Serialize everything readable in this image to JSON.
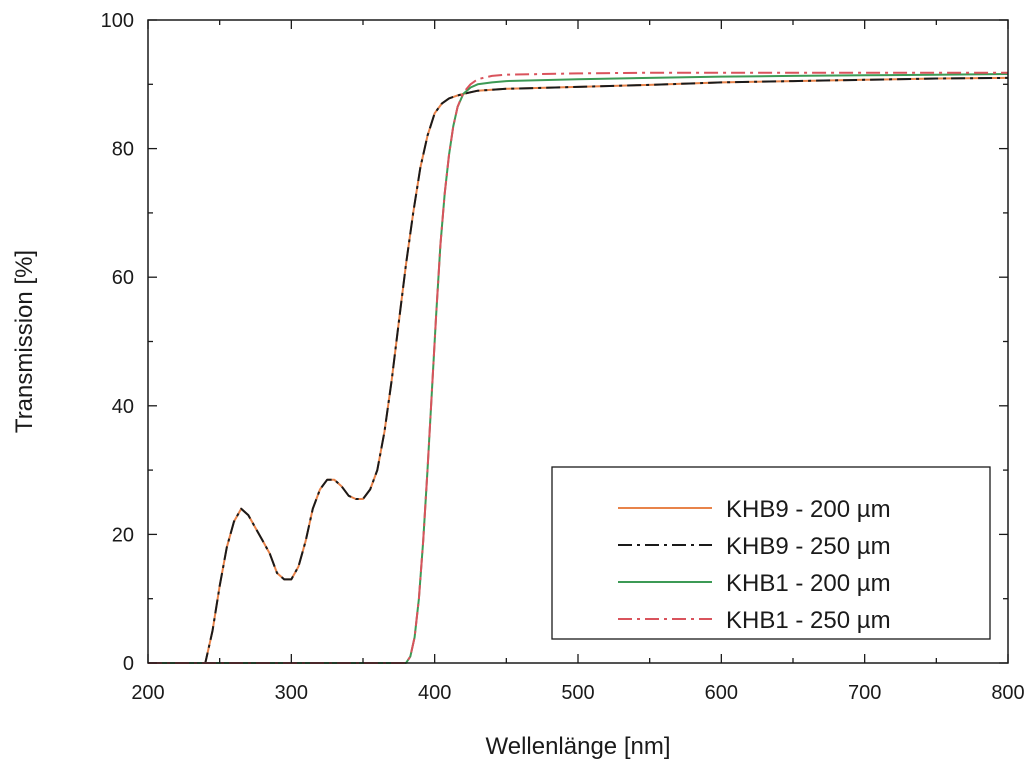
{
  "chart_data": {
    "type": "line",
    "xlabel": "Wellenlänge [nm]",
    "ylabel": "Transmission [%]",
    "xlim": [
      200,
      800
    ],
    "ylim": [
      0,
      100
    ],
    "xticks": [
      200,
      300,
      400,
      500,
      600,
      700,
      800
    ],
    "yticks": [
      0,
      20,
      40,
      60,
      80,
      100
    ],
    "grid": false,
    "legend_position": "bottom-right",
    "series": [
      {
        "name": "KHB9 - 200 µm",
        "color": "#e8834a",
        "style": "solid",
        "x": [
          200,
          240,
          245,
          250,
          255,
          260,
          265,
          270,
          275,
          280,
          285,
          290,
          295,
          300,
          305,
          310,
          315,
          320,
          325,
          330,
          335,
          340,
          345,
          350,
          355,
          360,
          365,
          370,
          375,
          380,
          385,
          390,
          395,
          400,
          405,
          410,
          415,
          420,
          430,
          450,
          500,
          550,
          600,
          650,
          700,
          750,
          800
        ],
        "y": [
          0,
          0,
          5,
          12,
          18,
          22,
          24,
          23,
          21,
          19,
          17,
          14,
          13,
          13,
          15,
          19,
          24,
          27,
          28.5,
          28.5,
          27.5,
          26,
          25.5,
          25.5,
          27,
          30,
          36,
          44,
          53,
          62,
          70,
          77,
          82,
          85.5,
          87,
          87.8,
          88.2,
          88.5,
          89,
          89.3,
          89.6,
          89.9,
          90.3,
          90.5,
          90.7,
          90.9,
          91
        ]
      },
      {
        "name": "KHB9 - 250 µm",
        "color": "#1a1a1a",
        "style": "dashdot",
        "x": [
          200,
          240,
          245,
          250,
          255,
          260,
          265,
          270,
          275,
          280,
          285,
          290,
          295,
          300,
          305,
          310,
          315,
          320,
          325,
          330,
          335,
          340,
          345,
          350,
          355,
          360,
          365,
          370,
          375,
          380,
          385,
          390,
          395,
          400,
          405,
          410,
          415,
          420,
          430,
          450,
          500,
          550,
          600,
          650,
          700,
          750,
          800
        ],
        "y": [
          0,
          0,
          5,
          12,
          18,
          22,
          24,
          23,
          21,
          19,
          17,
          14,
          13,
          13,
          15,
          19,
          24,
          27,
          28.5,
          28.5,
          27.5,
          26,
          25.5,
          25.5,
          27,
          30,
          36,
          44,
          53,
          62,
          70,
          77,
          82,
          85.5,
          87,
          87.8,
          88.2,
          88.5,
          89,
          89.3,
          89.6,
          89.9,
          90.3,
          90.5,
          90.7,
          90.9,
          91
        ]
      },
      {
        "name": "KHB1 - 200 µm",
        "color": "#3c9a55",
        "style": "solid",
        "x": [
          200,
          380,
          383,
          386,
          389,
          392,
          395,
          398,
          401,
          404,
          407,
          410,
          413,
          416,
          420,
          425,
          430,
          440,
          450,
          500,
          550,
          600,
          650,
          700,
          750,
          800
        ],
        "y": [
          0,
          0,
          1,
          4,
          10,
          19,
          30,
          42,
          54,
          65,
          73,
          79,
          83.5,
          86.5,
          88.5,
          89.5,
          90,
          90.3,
          90.5,
          90.8,
          91,
          91.2,
          91.3,
          91.4,
          91.5,
          91.6
        ]
      },
      {
        "name": "KHB1 - 250 µm",
        "color": "#d9535c",
        "style": "dashdot",
        "x": [
          200,
          380,
          383,
          386,
          389,
          392,
          395,
          398,
          401,
          404,
          407,
          410,
          413,
          416,
          420,
          425,
          430,
          440,
          450,
          500,
          550,
          600,
          650,
          700,
          750,
          800
        ],
        "y": [
          0,
          0,
          1,
          4,
          10,
          19,
          30,
          42,
          54,
          65,
          73,
          79,
          83.5,
          86.5,
          88.7,
          90,
          90.8,
          91.3,
          91.5,
          91.7,
          91.8,
          91.8,
          91.8,
          91.8,
          91.8,
          91.8
        ]
      }
    ]
  }
}
